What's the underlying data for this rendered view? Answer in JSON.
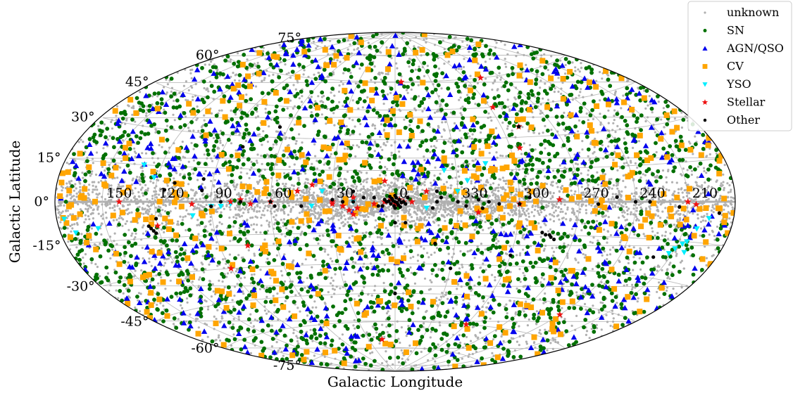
{
  "chart_data": {
    "type": "scatter",
    "projection": "aitoff-hammer",
    "xlabel": "Galactic Longitude",
    "ylabel": "Galactic Latitude",
    "x_tick_labels": [
      "210",
      "240",
      "270",
      "300",
      "330",
      "0",
      "30",
      "60",
      "90",
      "120",
      "150"
    ],
    "x_tick_values": [
      210,
      240,
      270,
      300,
      330,
      0,
      30,
      60,
      90,
      120,
      150
    ],
    "y_tick_labels": [
      "75°",
      "60°",
      "45°",
      "30°",
      "15°",
      "0°",
      "-15°",
      "-30°",
      "-45°",
      "-60°",
      "-75°"
    ],
    "y_tick_values": [
      75,
      60,
      45,
      30,
      15,
      0,
      -15,
      -30,
      -45,
      -60,
      -75
    ],
    "grid": true,
    "legend_position": "top-right",
    "colors": {
      "unknown": "#b0b0b0",
      "SN": "#007000",
      "AGN/QSO": "#0000ee",
      "CV": "#ffa500",
      "YSO": "#00eeff",
      "Stellar": "#ee1111",
      "Other": "#000000"
    },
    "series": [
      {
        "name": "unknown",
        "marker": "point",
        "approx_count": 6000,
        "distribution": "all-sky, concentrated toward galactic plane"
      },
      {
        "name": "SN",
        "marker": "circle",
        "approx_count": 2000,
        "distribution": "high latitude, avoids plane"
      },
      {
        "name": "AGN/QSO",
        "marker": "triangle-up",
        "approx_count": 500,
        "distribution": "high latitude"
      },
      {
        "name": "CV",
        "marker": "square",
        "approx_count": 450,
        "distribution": "all-sky, moderate plane concentration"
      },
      {
        "name": "YSO",
        "marker": "triangle-down",
        "approx_count": 60,
        "points": [
          [
            205,
            -15
          ],
          [
            207,
            -16
          ],
          [
            210,
            -18
          ],
          [
            202,
            -10
          ],
          [
            203,
            -19
          ],
          [
            212,
            -20
          ],
          [
            196,
            -6
          ],
          [
            175,
            -6
          ],
          [
            170,
            -11
          ],
          [
            155,
            -10
          ],
          [
            130,
            15
          ],
          [
            122,
            10
          ],
          [
            100,
            -6
          ],
          [
            90,
            -2
          ],
          [
            85,
            -2
          ],
          [
            336,
            15
          ],
          [
            325,
            10
          ],
          [
            330,
            5
          ],
          [
            315,
            18
          ],
          [
            345,
            -3
          ],
          [
            20,
            0
          ],
          [
            40,
            -2
          ],
          [
            80,
            -1
          ],
          [
            35,
            5
          ]
        ]
      },
      {
        "name": "Stellar",
        "marker": "star",
        "approx_count": 40,
        "points": [
          [
            356,
            0
          ],
          [
            352,
            0
          ],
          [
            5,
            0
          ],
          [
            2,
            1
          ],
          [
            358,
            1
          ],
          [
            0,
            -1
          ],
          [
            10,
            -1
          ],
          [
            18,
            -3
          ],
          [
            20,
            -6
          ],
          [
            22,
            -4
          ],
          [
            25,
            -2
          ],
          [
            30,
            -1
          ],
          [
            40,
            8
          ],
          [
            47,
            5
          ],
          [
            60,
            0
          ],
          [
            70,
            -1
          ],
          [
            75,
            1
          ],
          [
            80,
            0
          ],
          [
            100,
            -1
          ],
          [
            140,
            0
          ],
          [
            320,
            -5
          ],
          [
            300,
            -1
          ],
          [
            280,
            1
          ],
          [
            345,
            5
          ],
          [
            20,
            2
          ],
          [
            30,
            0
          ],
          [
            295,
            25
          ],
          [
            290,
            35
          ],
          [
            298,
            45
          ],
          [
            287,
            60
          ],
          [
            300,
            -60
          ],
          [
            240,
            -50
          ],
          [
            15,
            -70
          ],
          [
            90,
            -30
          ],
          [
            75,
            -20
          ],
          [
            210,
            0
          ],
          [
            205,
            -1
          ],
          [
            120,
            -10
          ],
          [
            355,
            60
          ],
          [
            5,
            10
          ]
        ]
      },
      {
        "name": "Other",
        "marker": "circle-small",
        "approx_count": 100,
        "points": [
          [
            0,
            0
          ],
          [
            1,
            0.5
          ],
          [
            359,
            -0.5
          ],
          [
            2,
            -1
          ],
          [
            358,
            1
          ],
          [
            3,
            0.3
          ],
          [
            357,
            -0.3
          ],
          [
            1.5,
            1.5
          ],
          [
            358.5,
            -1.5
          ],
          [
            0.5,
            -2
          ],
          [
            359.5,
            2
          ],
          [
            4,
            0
          ],
          [
            356,
            0
          ],
          [
            2.5,
            2.5
          ],
          [
            357.5,
            -2.5
          ],
          [
            0,
            3
          ],
          [
            0,
            -3
          ],
          [
            5,
            1
          ],
          [
            355,
            -1
          ],
          [
            6,
            -2
          ],
          [
            354,
            2
          ],
          [
            340,
            0
          ],
          [
            342,
            -3
          ],
          [
            338,
            2
          ],
          [
            330,
            0
          ],
          [
            326,
            -2
          ],
          [
            320,
            1
          ],
          [
            318,
            -3
          ],
          [
            315,
            0
          ],
          [
            310,
            -1
          ],
          [
            300,
            -1
          ],
          [
            295,
            2
          ],
          [
            285,
            -15
          ],
          [
            282,
            -16
          ],
          [
            280,
            -17
          ],
          [
            283,
            -15
          ],
          [
            287,
            -14
          ],
          [
            260,
            -1
          ],
          [
            250,
            2
          ],
          [
            240,
            0
          ],
          [
            232,
            0
          ],
          [
            215,
            -2
          ],
          [
            190,
            -4
          ],
          [
            220,
            -22
          ],
          [
            125,
            -10
          ],
          [
            123,
            -12
          ],
          [
            122,
            -13
          ],
          [
            124,
            -11
          ],
          [
            120,
            -7
          ],
          [
            115,
            5
          ],
          [
            110,
            8
          ],
          [
            95,
            5
          ],
          [
            90,
            -2
          ],
          [
            85,
            0
          ],
          [
            75,
            0
          ],
          [
            60,
            0
          ],
          [
            58,
            -2
          ],
          [
            20,
            0
          ],
          [
            15,
            2
          ],
          [
            45,
            -2
          ],
          [
            25,
            0
          ],
          [
            30,
            1
          ],
          [
            10,
            2
          ],
          [
            8,
            -2
          ],
          [
            0,
            -10
          ],
          [
            355,
            -10
          ],
          [
            340,
            -20
          ],
          [
            330,
            -32
          ],
          [
            0,
            -45
          ],
          [
            300,
            -25
          ],
          [
            290,
            35
          ],
          [
            65,
            35
          ],
          [
            80,
            25
          ],
          [
            95,
            10
          ],
          [
            340,
            5
          ],
          [
            20,
            5
          ]
        ]
      }
    ]
  },
  "legend": {
    "items": [
      "unknown",
      "SN",
      "AGN/QSO",
      "CV",
      "YSO",
      "Stellar",
      "Other"
    ]
  }
}
